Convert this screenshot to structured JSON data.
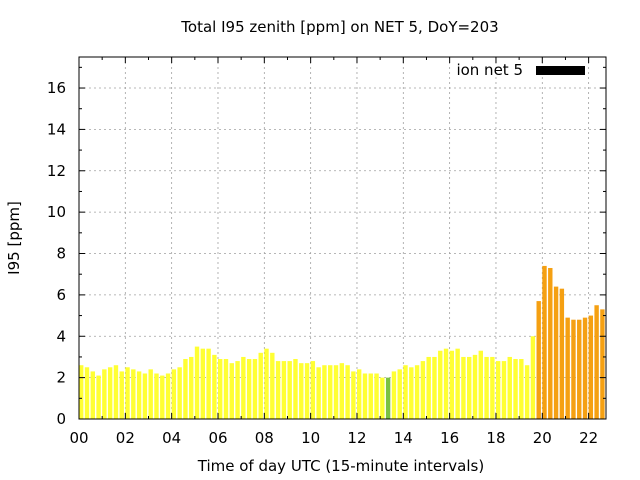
{
  "chart_data": {
    "type": "bar",
    "title": "Total I95 zenith [ppm] on NET 5, DoY=203",
    "xlabel": "Time of day UTC (15-minute intervals)",
    "ylabel": "I95 [ppm]",
    "xlim": [
      0,
      22.75
    ],
    "ylim": [
      0,
      17.5
    ],
    "x_ticks": [
      "00",
      "02",
      "04",
      "06",
      "08",
      "10",
      "12",
      "14",
      "16",
      "18",
      "20",
      "22"
    ],
    "y_ticks": [
      "0",
      "2",
      "4",
      "6",
      "8",
      "10",
      "12",
      "14",
      "16"
    ],
    "grid": true,
    "legend": {
      "position": "top-right",
      "label": "ion net 5",
      "color": "#000000"
    },
    "bar_width_hours": 0.19,
    "interval_hours": 0.25,
    "colors": {
      "yellow": "#ffff33",
      "green": "#7ac143",
      "orange": "#f5a012"
    },
    "series": [
      {
        "name": "ion net 5",
        "x_start": 0.0,
        "values": [
          2.6,
          2.5,
          2.3,
          2.1,
          2.4,
          2.5,
          2.6,
          2.3,
          2.5,
          2.4,
          2.3,
          2.2,
          2.4,
          2.2,
          2.1,
          2.2,
          2.4,
          2.5,
          2.9,
          3.0,
          3.5,
          3.4,
          3.4,
          3.1,
          2.9,
          2.9,
          2.7,
          2.8,
          3.0,
          2.9,
          2.9,
          3.2,
          3.4,
          3.2,
          2.8,
          2.8,
          2.8,
          2.9,
          2.7,
          2.7,
          2.8,
          2.5,
          2.6,
          2.6,
          2.6,
          2.7,
          2.6,
          2.3,
          2.4,
          2.2,
          2.2,
          2.2,
          2.0,
          2.0,
          2.3,
          2.4,
          2.6,
          2.5,
          2.6,
          2.8,
          3.0,
          3.0,
          3.3,
          3.4,
          3.3,
          3.4,
          3.0,
          3.0,
          3.1,
          3.3,
          3.0,
          3.0,
          2.8,
          2.8,
          3.0,
          2.9,
          2.9,
          2.6,
          4.0,
          5.7,
          7.4,
          7.3,
          6.4,
          6.3,
          4.9,
          4.8,
          4.8,
          4.9,
          5.0,
          5.5,
          5.3
        ],
        "colors_by_index": {
          "53": "green",
          "79": "orange",
          "80": "orange",
          "81": "orange",
          "82": "orange",
          "83": "orange",
          "84": "orange",
          "85": "orange",
          "86": "orange",
          "87": "orange",
          "88": "orange",
          "89": "orange",
          "90": "orange"
        }
      }
    ]
  }
}
